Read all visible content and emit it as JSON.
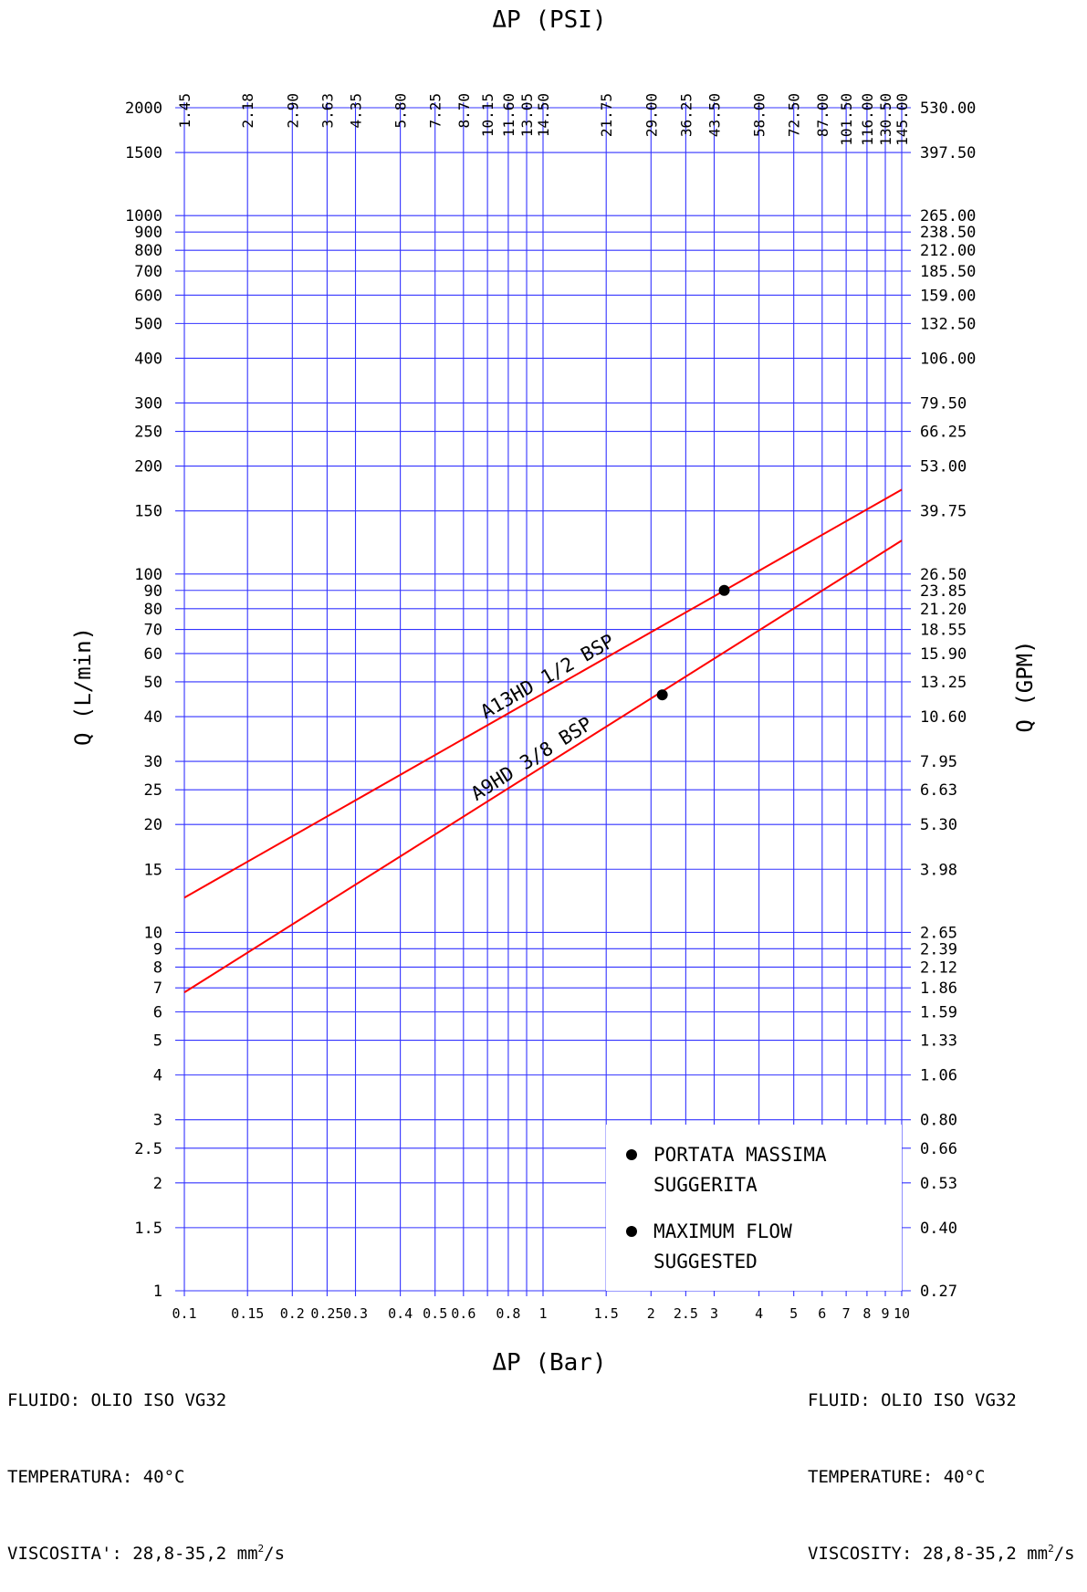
{
  "chart_data": {
    "type": "line",
    "x_axis": {
      "label": "ΔP (Bar)",
      "scale": "log",
      "range": [
        0.1,
        10
      ],
      "ticks": [
        0.1,
        0.15,
        0.2,
        0.25,
        0.3,
        0.4,
        0.5,
        0.6,
        0.8,
        1,
        1.5,
        2,
        2.5,
        3,
        4,
        5,
        6,
        7,
        8,
        9,
        10
      ],
      "tick_labels": [
        "0.1",
        "0.15",
        "0.2",
        "0.25",
        "0.3",
        "0.4",
        "0.5",
        "0.6",
        "0.8",
        "1",
        "1.5",
        "2",
        "2.5",
        "3",
        "4",
        "5",
        "6",
        "7",
        "8",
        "9",
        "10"
      ]
    },
    "x2_axis": {
      "label": "ΔP (PSI)",
      "ticks": [
        0.1,
        0.15,
        0.2,
        0.25,
        0.3,
        0.4,
        0.5,
        0.6,
        0.7,
        0.8,
        0.9,
        1,
        1.5,
        2,
        2.5,
        3,
        4,
        5,
        6,
        7,
        8,
        9,
        10
      ],
      "tick_labels": [
        "1.45",
        "2.18",
        "2.90",
        "3.63",
        "4.35",
        "5.80",
        "7.25",
        "8.70",
        "10.15",
        "11.60",
        "13.05",
        "14.50",
        "21.75",
        "29.00",
        "36.25",
        "43.50",
        "58.00",
        "72.50",
        "87.00",
        "101.50",
        "116.00",
        "130.50",
        "145.00"
      ]
    },
    "y_axis": {
      "label": "Q (L/min)",
      "scale": "log",
      "range": [
        1,
        2000
      ],
      "ticks": [
        1,
        1.5,
        2,
        2.5,
        3,
        4,
        5,
        6,
        7,
        8,
        9,
        10,
        15,
        20,
        25,
        30,
        40,
        50,
        60,
        70,
        80,
        90,
        100,
        150,
        200,
        250,
        300,
        400,
        500,
        600,
        700,
        800,
        900,
        1000,
        1500,
        2000
      ],
      "tick_labels": [
        "1",
        "1.5",
        "2",
        "2.5",
        "3",
        "4",
        "5",
        "6",
        "7",
        "8",
        "9",
        "10",
        "15",
        "20",
        "25",
        "30",
        "40",
        "50",
        "60",
        "70",
        "80",
        "90",
        "100",
        "150",
        "200",
        "250",
        "300",
        "400",
        "500",
        "600",
        "700",
        "800",
        "900",
        "1000",
        "1500",
        "2000"
      ]
    },
    "y2_axis": {
      "label": "Q (GPM)",
      "tick_labels": [
        "0.27",
        "0.40",
        "0.53",
        "0.66",
        "0.80",
        "1.06",
        "1.33",
        "1.59",
        "1.86",
        "2.12",
        "2.39",
        "2.65",
        "3.98",
        "5.30",
        "6.63",
        "7.95",
        "10.60",
        "13.25",
        "15.90",
        "18.55",
        "21.20",
        "23.85",
        "26.50",
        "39.75",
        "53.00",
        "66.25",
        "79.50",
        "106.00",
        "132.50",
        "159.00",
        "185.50",
        "212.00",
        "238.50",
        "265.00",
        "397.50",
        "530.00"
      ]
    },
    "series": [
      {
        "name": "A13HD 1/2 BSP",
        "color": "#ff0000",
        "x": [
          0.1,
          10
        ],
        "y": [
          12.5,
          172
        ],
        "max_point": {
          "x": 3.2,
          "y": 90
        }
      },
      {
        "name": "A9HD 3/8 BSP",
        "color": "#ff0000",
        "x": [
          0.1,
          10
        ],
        "y": [
          6.8,
          124
        ],
        "max_point": {
          "x": 2.15,
          "y": 46
        }
      }
    ],
    "legend": {
      "placement": "bottom-right",
      "entries": [
        {
          "marker": "dot",
          "lines": [
            "PORTATA MASSIMA",
            "SUGGERITA"
          ]
        },
        {
          "marker": "dot",
          "lines": [
            "MAXIMUM FLOW",
            "SUGGESTED"
          ]
        }
      ]
    },
    "grid": true,
    "grid_color": "#3333ff",
    "line_color": "#ff0000"
  },
  "notes": {
    "left": {
      "fluid": "FLUIDO: OLIO ISO VG32",
      "temperature": "TEMPERATURA: 40°C",
      "viscosity": "VISCOSITA': 28,8-35,2 mm",
      "viscosity_exp": "2",
      "viscosity_unit": "/s"
    },
    "right": {
      "fluid": "FLUID: OLIO ISO VG32",
      "temperature": "TEMPERATURE: 40°C",
      "viscosity": "VISCOSITY: 28,8-35,2 mm",
      "viscosity_exp": "2",
      "viscosity_unit": "/s"
    }
  }
}
